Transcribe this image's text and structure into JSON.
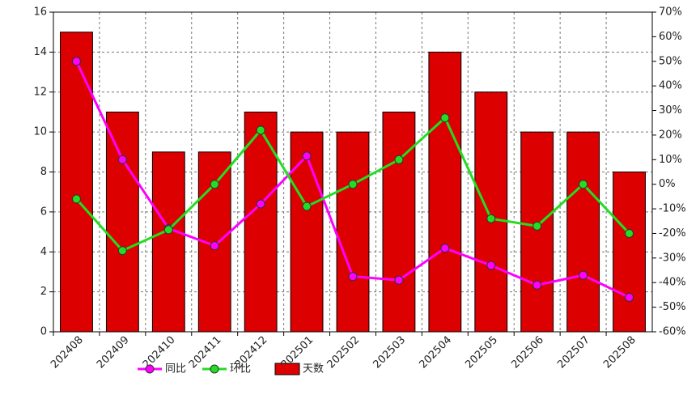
{
  "chart_data": {
    "type": "bar-line",
    "categories": [
      "202408",
      "202409",
      "202410",
      "202411",
      "202412",
      "202501",
      "202502",
      "202503",
      "202504",
      "202505",
      "202506",
      "202507",
      "202508"
    ],
    "series": [
      {
        "name": "同比",
        "type": "line",
        "axis": "y2",
        "color": "#ff00ff",
        "values": [
          50,
          10,
          -18,
          -25,
          -8,
          11.5,
          -37.5,
          -39,
          -26,
          -33,
          -41,
          -37,
          -46
        ]
      },
      {
        "name": "环比",
        "type": "line",
        "axis": "y2",
        "color": "#22dd22",
        "values": [
          -6,
          -27,
          -18.5,
          0,
          22,
          -9,
          0,
          10,
          27,
          -14,
          -17,
          0,
          -20
        ]
      },
      {
        "name": "天数",
        "type": "bar",
        "color": "#dd0000",
        "values": [
          15,
          11,
          9,
          9,
          11,
          10,
          10,
          11,
          14,
          12,
          10,
          10,
          8
        ]
      }
    ],
    "ylim": [
      0,
      16
    ],
    "yticks": [
      0,
      2,
      4,
      6,
      8,
      10,
      12,
      14,
      16
    ],
    "y2lim": [
      -60,
      70
    ],
    "y2ticks": [
      {
        "value": -60,
        "label": "-60%"
      },
      {
        "value": -50,
        "label": "-50%"
      },
      {
        "value": -40,
        "label": "-40%"
      },
      {
        "value": -30,
        "label": "-30%"
      },
      {
        "value": -20,
        "label": "-20%"
      },
      {
        "value": -10,
        "label": "-10%"
      },
      {
        "value": 0,
        "label": "0%"
      },
      {
        "value": 10,
        "label": "10%"
      },
      {
        "value": 20,
        "label": "20%"
      },
      {
        "value": 30,
        "label": "30%"
      },
      {
        "value": 40,
        "label": "40%"
      },
      {
        "value": 50,
        "label": "50%"
      },
      {
        "value": 60,
        "label": "60%"
      },
      {
        "value": 70,
        "label": "70%"
      }
    ],
    "grid": true
  }
}
